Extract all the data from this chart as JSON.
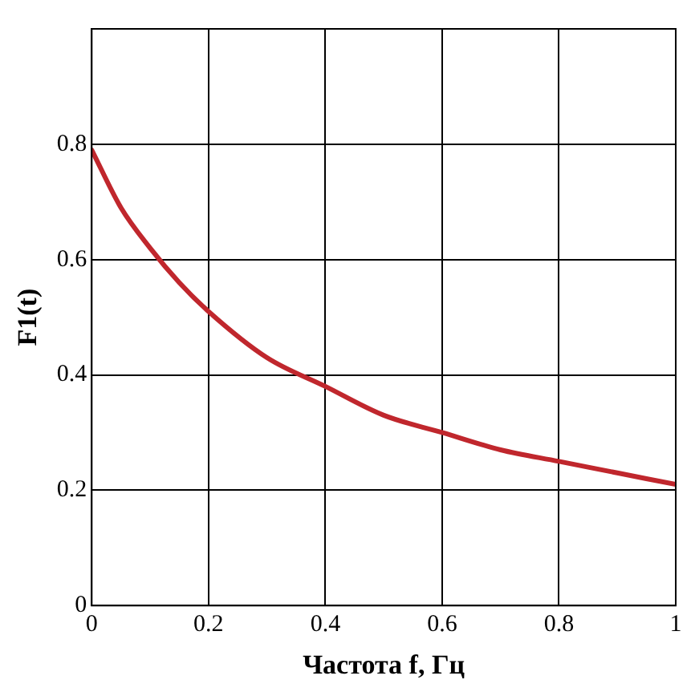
{
  "chart_data": {
    "type": "line",
    "xlabel": "Частота f, Гц",
    "ylabel": "F1(t)",
    "x": [
      0,
      0.05,
      0.1,
      0.15,
      0.2,
      0.3,
      0.4,
      0.5,
      0.6,
      0.7,
      0.8,
      0.9,
      1
    ],
    "series": [
      {
        "color": "#c0272d",
        "values": [
          0.79,
          0.69,
          0.62,
          0.56,
          0.51,
          0.43,
          0.38,
          0.33,
          0.3,
          0.27,
          0.25,
          0.23,
          0.21
        ]
      }
    ],
    "xlim": [
      0,
      1
    ],
    "xticks": [
      0,
      0.2,
      0.4,
      0.6,
      0.8,
      1
    ],
    "ylim": [
      0,
      1
    ],
    "yticks": [
      0,
      0.2,
      0.4,
      0.6,
      0.8,
      {
        "value": 1,
        "label": null
      }
    ],
    "grid": true,
    "legend": false,
    "marker": "none",
    "line_style": "solid"
  }
}
